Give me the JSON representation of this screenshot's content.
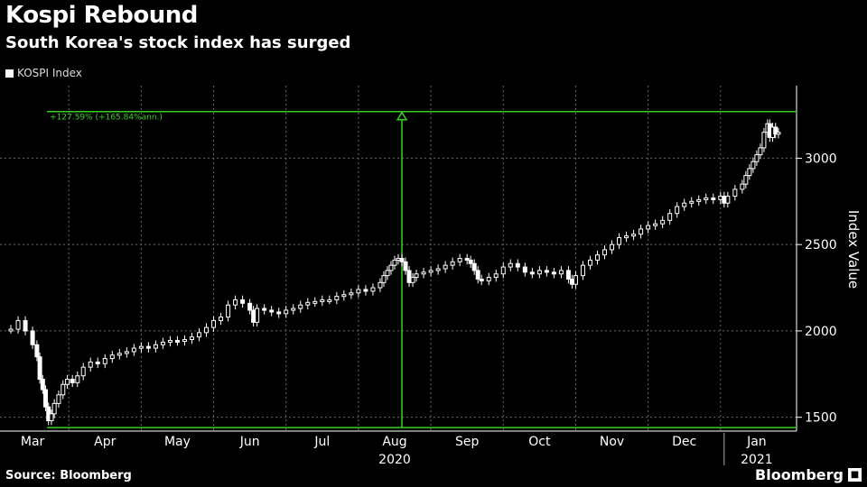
{
  "chart_data": {
    "type": "candlestick",
    "title": "Kospi Rebound",
    "subtitle": "South Korea's stock index has surged",
    "legend": [
      "KOSPI Index"
    ],
    "xlabel": "",
    "ylabel": "Index Value",
    "ylim": [
      1420,
      3420
    ],
    "yticks": [
      1500,
      2000,
      2500,
      3000
    ],
    "xticks": [
      {
        "label": "Mar",
        "month": 3
      },
      {
        "label": "Apr",
        "month": 4
      },
      {
        "label": "May",
        "month": 5
      },
      {
        "label": "Jun",
        "month": 6
      },
      {
        "label": "Jul",
        "month": 7
      },
      {
        "label": "Aug",
        "month": 8
      },
      {
        "label": "Sep",
        "month": 9
      },
      {
        "label": "Oct",
        "month": 10
      },
      {
        "label": "Nov",
        "month": 11
      },
      {
        "label": "Dec",
        "month": 12
      },
      {
        "label": "Jan",
        "month": 13
      }
    ],
    "year_labels": [
      {
        "label": "2020",
        "month": 8
      },
      {
        "label": "2021",
        "month": 13
      }
    ],
    "annotation": {
      "text": "+127.59% (+165.84%ann.)",
      "low_value": 1440,
      "high_value": 3270,
      "low_date_month": 3.2,
      "arrow_date_month": 8.1
    },
    "series": [
      {
        "name": "KOSPI Index",
        "points": [
          {
            "x": 2.7,
            "y": 2010
          },
          {
            "x": 2.8,
            "y": 2060
          },
          {
            "x": 2.9,
            "y": 2000
          },
          {
            "x": 3.0,
            "y": 1920
          },
          {
            "x": 3.06,
            "y": 1850
          },
          {
            "x": 3.1,
            "y": 1720
          },
          {
            "x": 3.14,
            "y": 1660
          },
          {
            "x": 3.18,
            "y": 1560
          },
          {
            "x": 3.22,
            "y": 1480
          },
          {
            "x": 3.26,
            "y": 1520
          },
          {
            "x": 3.3,
            "y": 1580
          },
          {
            "x": 3.36,
            "y": 1630
          },
          {
            "x": 3.42,
            "y": 1690
          },
          {
            "x": 3.48,
            "y": 1720
          },
          {
            "x": 3.55,
            "y": 1700
          },
          {
            "x": 3.62,
            "y": 1740
          },
          {
            "x": 3.7,
            "y": 1790
          },
          {
            "x": 3.8,
            "y": 1820
          },
          {
            "x": 3.9,
            "y": 1810
          },
          {
            "x": 4.0,
            "y": 1840
          },
          {
            "x": 4.1,
            "y": 1860
          },
          {
            "x": 4.2,
            "y": 1870
          },
          {
            "x": 4.3,
            "y": 1880
          },
          {
            "x": 4.4,
            "y": 1900
          },
          {
            "x": 4.5,
            "y": 1910
          },
          {
            "x": 4.6,
            "y": 1900
          },
          {
            "x": 4.7,
            "y": 1920
          },
          {
            "x": 4.8,
            "y": 1935
          },
          {
            "x": 4.9,
            "y": 1945
          },
          {
            "x": 5.0,
            "y": 1940
          },
          {
            "x": 5.1,
            "y": 1950
          },
          {
            "x": 5.2,
            "y": 1965
          },
          {
            "x": 5.3,
            "y": 1990
          },
          {
            "x": 5.4,
            "y": 2020
          },
          {
            "x": 5.5,
            "y": 2060
          },
          {
            "x": 5.6,
            "y": 2080
          },
          {
            "x": 5.7,
            "y": 2150
          },
          {
            "x": 5.8,
            "y": 2180
          },
          {
            "x": 5.9,
            "y": 2160
          },
          {
            "x": 6.0,
            "y": 2120
          },
          {
            "x": 6.05,
            "y": 2050
          },
          {
            "x": 6.1,
            "y": 2130
          },
          {
            "x": 6.2,
            "y": 2120
          },
          {
            "x": 6.3,
            "y": 2110
          },
          {
            "x": 6.4,
            "y": 2100
          },
          {
            "x": 6.5,
            "y": 2120
          },
          {
            "x": 6.6,
            "y": 2130
          },
          {
            "x": 6.7,
            "y": 2150
          },
          {
            "x": 6.8,
            "y": 2165
          },
          {
            "x": 6.9,
            "y": 2170
          },
          {
            "x": 7.0,
            "y": 2180
          },
          {
            "x": 7.1,
            "y": 2180
          },
          {
            "x": 7.2,
            "y": 2200
          },
          {
            "x": 7.3,
            "y": 2210
          },
          {
            "x": 7.4,
            "y": 2220
          },
          {
            "x": 7.5,
            "y": 2240
          },
          {
            "x": 7.6,
            "y": 2230
          },
          {
            "x": 7.7,
            "y": 2250
          },
          {
            "x": 7.8,
            "y": 2280
          },
          {
            "x": 7.85,
            "y": 2320
          },
          {
            "x": 7.9,
            "y": 2350
          },
          {
            "x": 7.95,
            "y": 2380
          },
          {
            "x": 8.0,
            "y": 2410
          },
          {
            "x": 8.05,
            "y": 2420
          },
          {
            "x": 8.1,
            "y": 2400
          },
          {
            "x": 8.15,
            "y": 2350
          },
          {
            "x": 8.2,
            "y": 2280
          },
          {
            "x": 8.25,
            "y": 2310
          },
          {
            "x": 8.3,
            "y": 2330
          },
          {
            "x": 8.4,
            "y": 2340
          },
          {
            "x": 8.5,
            "y": 2350
          },
          {
            "x": 8.6,
            "y": 2360
          },
          {
            "x": 8.7,
            "y": 2380
          },
          {
            "x": 8.8,
            "y": 2400
          },
          {
            "x": 8.9,
            "y": 2420
          },
          {
            "x": 9.0,
            "y": 2410
          },
          {
            "x": 9.05,
            "y": 2390
          },
          {
            "x": 9.1,
            "y": 2350
          },
          {
            "x": 9.15,
            "y": 2300
          },
          {
            "x": 9.2,
            "y": 2290
          },
          {
            "x": 9.3,
            "y": 2310
          },
          {
            "x": 9.4,
            "y": 2330
          },
          {
            "x": 9.5,
            "y": 2370
          },
          {
            "x": 9.6,
            "y": 2390
          },
          {
            "x": 9.7,
            "y": 2370
          },
          {
            "x": 9.8,
            "y": 2340
          },
          {
            "x": 9.9,
            "y": 2330
          },
          {
            "x": 10.0,
            "y": 2350
          },
          {
            "x": 10.1,
            "y": 2340
          },
          {
            "x": 10.2,
            "y": 2330
          },
          {
            "x": 10.3,
            "y": 2350
          },
          {
            "x": 10.4,
            "y": 2300
          },
          {
            "x": 10.45,
            "y": 2270
          },
          {
            "x": 10.5,
            "y": 2320
          },
          {
            "x": 10.6,
            "y": 2380
          },
          {
            "x": 10.7,
            "y": 2410
          },
          {
            "x": 10.8,
            "y": 2440
          },
          {
            "x": 10.9,
            "y": 2470
          },
          {
            "x": 11.0,
            "y": 2500
          },
          {
            "x": 11.1,
            "y": 2540
          },
          {
            "x": 11.2,
            "y": 2550
          },
          {
            "x": 11.3,
            "y": 2560
          },
          {
            "x": 11.4,
            "y": 2590
          },
          {
            "x": 11.5,
            "y": 2610
          },
          {
            "x": 11.6,
            "y": 2620
          },
          {
            "x": 11.7,
            "y": 2640
          },
          {
            "x": 11.8,
            "y": 2680
          },
          {
            "x": 11.9,
            "y": 2720
          },
          {
            "x": 12.0,
            "y": 2740
          },
          {
            "x": 12.1,
            "y": 2750
          },
          {
            "x": 12.2,
            "y": 2760
          },
          {
            "x": 12.3,
            "y": 2770
          },
          {
            "x": 12.4,
            "y": 2760
          },
          {
            "x": 12.5,
            "y": 2780
          },
          {
            "x": 12.55,
            "y": 2740
          },
          {
            "x": 12.6,
            "y": 2780
          },
          {
            "x": 12.7,
            "y": 2820
          },
          {
            "x": 12.8,
            "y": 2850
          },
          {
            "x": 12.85,
            "y": 2900
          },
          {
            "x": 12.9,
            "y": 2940
          },
          {
            "x": 12.95,
            "y": 2980
          },
          {
            "x": 13.0,
            "y": 3020
          },
          {
            "x": 13.05,
            "y": 3060
          },
          {
            "x": 13.1,
            "y": 3150
          },
          {
            "x": 13.15,
            "y": 3200
          },
          {
            "x": 13.18,
            "y": 3120
          },
          {
            "x": 13.22,
            "y": 3180
          },
          {
            "x": 13.26,
            "y": 3140
          },
          {
            "x": 13.3,
            "y": 3150
          }
        ]
      }
    ]
  },
  "footer": {
    "source": "Source: Bloomberg",
    "brand": "Bloomberg"
  },
  "colors": {
    "background": "#000000",
    "series": "#ffffff",
    "annotation": "#38d020",
    "grid": "#6a6a6a"
  }
}
